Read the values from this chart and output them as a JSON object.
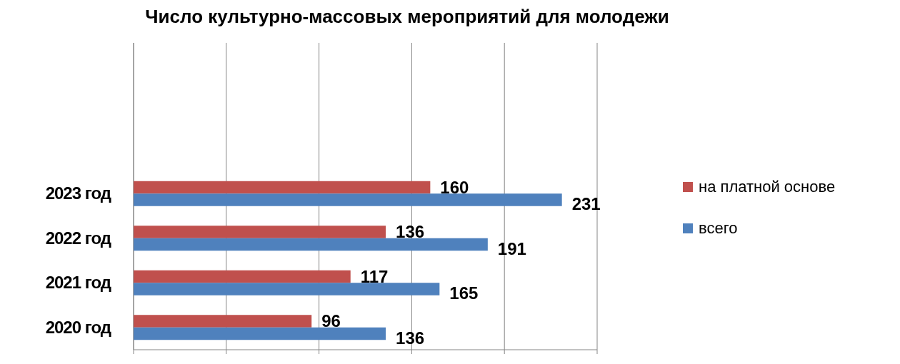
{
  "chart_data": {
    "type": "bar",
    "orientation": "horizontal",
    "title": "Число культурно-массовых мероприятий  для молодежи",
    "categories": [
      "2023 год",
      "2022 год",
      "2021 год",
      "2020 год"
    ],
    "series": [
      {
        "name": "на платной основе",
        "color": "#c0504d",
        "values": [
          160,
          136,
          117,
          96
        ]
      },
      {
        "name": "всего",
        "color": "#4f81bd",
        "values": [
          231,
          191,
          165,
          136
        ]
      }
    ],
    "xlim": [
      0,
      250
    ],
    "xticks": [
      {
        "value": 0,
        "label": null
      },
      {
        "value": 50,
        "label": null
      },
      {
        "value": 100,
        "label": null
      },
      {
        "value": 150,
        "label": null
      },
      {
        "value": 200,
        "label": null
      },
      {
        "value": 250,
        "label": null
      }
    ],
    "tick_labels": "y",
    "grid": "x",
    "legend": "right",
    "data_labels": true
  }
}
